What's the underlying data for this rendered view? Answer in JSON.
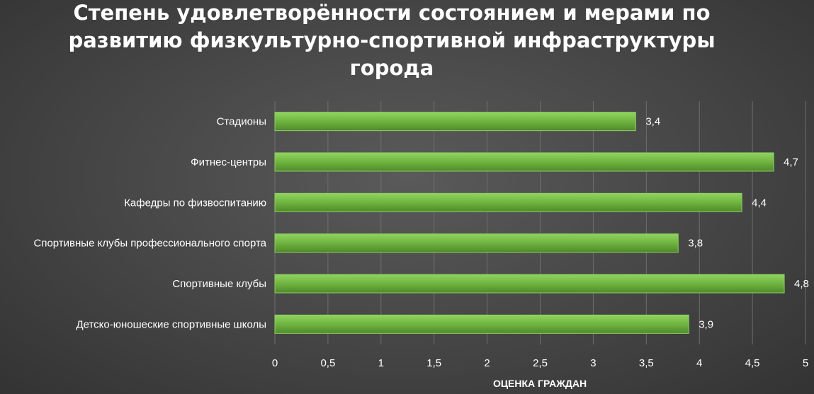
{
  "chart_data": {
    "type": "bar",
    "orientation": "horizontal",
    "title_lines": [
      "Степень удовлетворённости состоянием и мерами по",
      "развитию физкультурно-спортивной инфраструктуры",
      "города"
    ],
    "xlabel": "ОЦЕНКА ГРАЖДАН",
    "ylabel": "",
    "categories": [
      "Стадионы",
      "Фитнес-центры",
      "Кафедры по физвоспитанию",
      "Спортивные клубы профессионального спорта",
      "Спортивные клубы",
      "Детско-юношеские спортивные школы"
    ],
    "values": [
      3.4,
      4.7,
      4.4,
      3.8,
      4.8,
      3.9
    ],
    "value_labels": [
      "3,4",
      "4,7",
      "4,4",
      "3,8",
      "4,8",
      "3,9"
    ],
    "xlim": [
      0,
      5
    ],
    "ticks": [
      0,
      0.5,
      1,
      1.5,
      2,
      2.5,
      3,
      3.5,
      4,
      4.5,
      5
    ],
    "tick_labels": [
      "0",
      "0,5",
      "1",
      "1,5",
      "2",
      "2,5",
      "3",
      "3,5",
      "4",
      "4,5",
      "5"
    ],
    "grid": true,
    "legend": "none",
    "bar_color": "#70ad47"
  }
}
